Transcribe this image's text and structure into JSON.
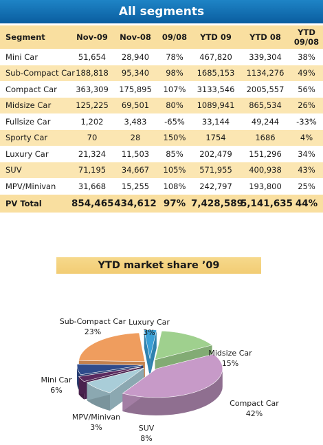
{
  "header": {
    "title": "All segments"
  },
  "table": {
    "columns": [
      "Segment",
      "Nov-09",
      "Nov-08",
      "09/08",
      "YTD 09",
      "YTD 08",
      "YTD\n09/08"
    ],
    "rows": [
      [
        "Mini Car",
        "51,654",
        "28,940",
        "78%",
        "467,820",
        "339,304",
        "38%"
      ],
      [
        "Sub-Compact Car",
        "188,818",
        "95,340",
        "98%",
        "1685,153",
        "1134,276",
        "49%"
      ],
      [
        "Compact Car",
        "363,309",
        "175,895",
        "107%",
        "3133,546",
        "2005,557",
        "56%"
      ],
      [
        "Midsize Car",
        "125,225",
        "69,501",
        "80%",
        "1089,941",
        "865,534",
        "26%"
      ],
      [
        "Fullsize Car",
        "1,202",
        "3,483",
        "-65%",
        "33,144",
        "49,244",
        "-33%"
      ],
      [
        "Sporty Car",
        "70",
        "28",
        "150%",
        "1754",
        "1686",
        "4%"
      ],
      [
        "Luxury Car",
        "21,324",
        "11,503",
        "85%",
        "202,479",
        "151,296",
        "34%"
      ],
      [
        "SUV",
        "71,195",
        "34,667",
        "105%",
        "571,955",
        "400,938",
        "43%"
      ],
      [
        "MPV/Minivan",
        "31,668",
        "15,255",
        "108%",
        "242,797",
        "193,800",
        "25%"
      ]
    ],
    "total": [
      "PV Total",
      "854,465",
      "434,612",
      "97%",
      "7,428,589",
      "5,141,635",
      "44%"
    ]
  },
  "chart_data": {
    "type": "pie",
    "title": "YTD market share ’09",
    "slices": [
      {
        "label": "Luxury Car",
        "value": 3,
        "display": "3%",
        "color": "#3a9fd6"
      },
      {
        "label": "Midsize Car",
        "value": 15,
        "display": "15%",
        "color": "#9fd08e"
      },
      {
        "label": "Compact Car",
        "value": 42,
        "display": "42%",
        "color": "#c79ac8"
      },
      {
        "label": "SUV",
        "value": 8,
        "display": "8%",
        "color": "#a9cdd8"
      },
      {
        "label": "MPV/Minivan",
        "value": 3,
        "display": "3%",
        "color": "#5a2a5f"
      },
      {
        "label": "Mini Car",
        "value": 6,
        "display": "6%",
        "color": "#2e4b8c"
      },
      {
        "label": "Sub-Compact Car",
        "value": 23,
        "display": "23%",
        "color": "#ef9d5e"
      }
    ]
  }
}
